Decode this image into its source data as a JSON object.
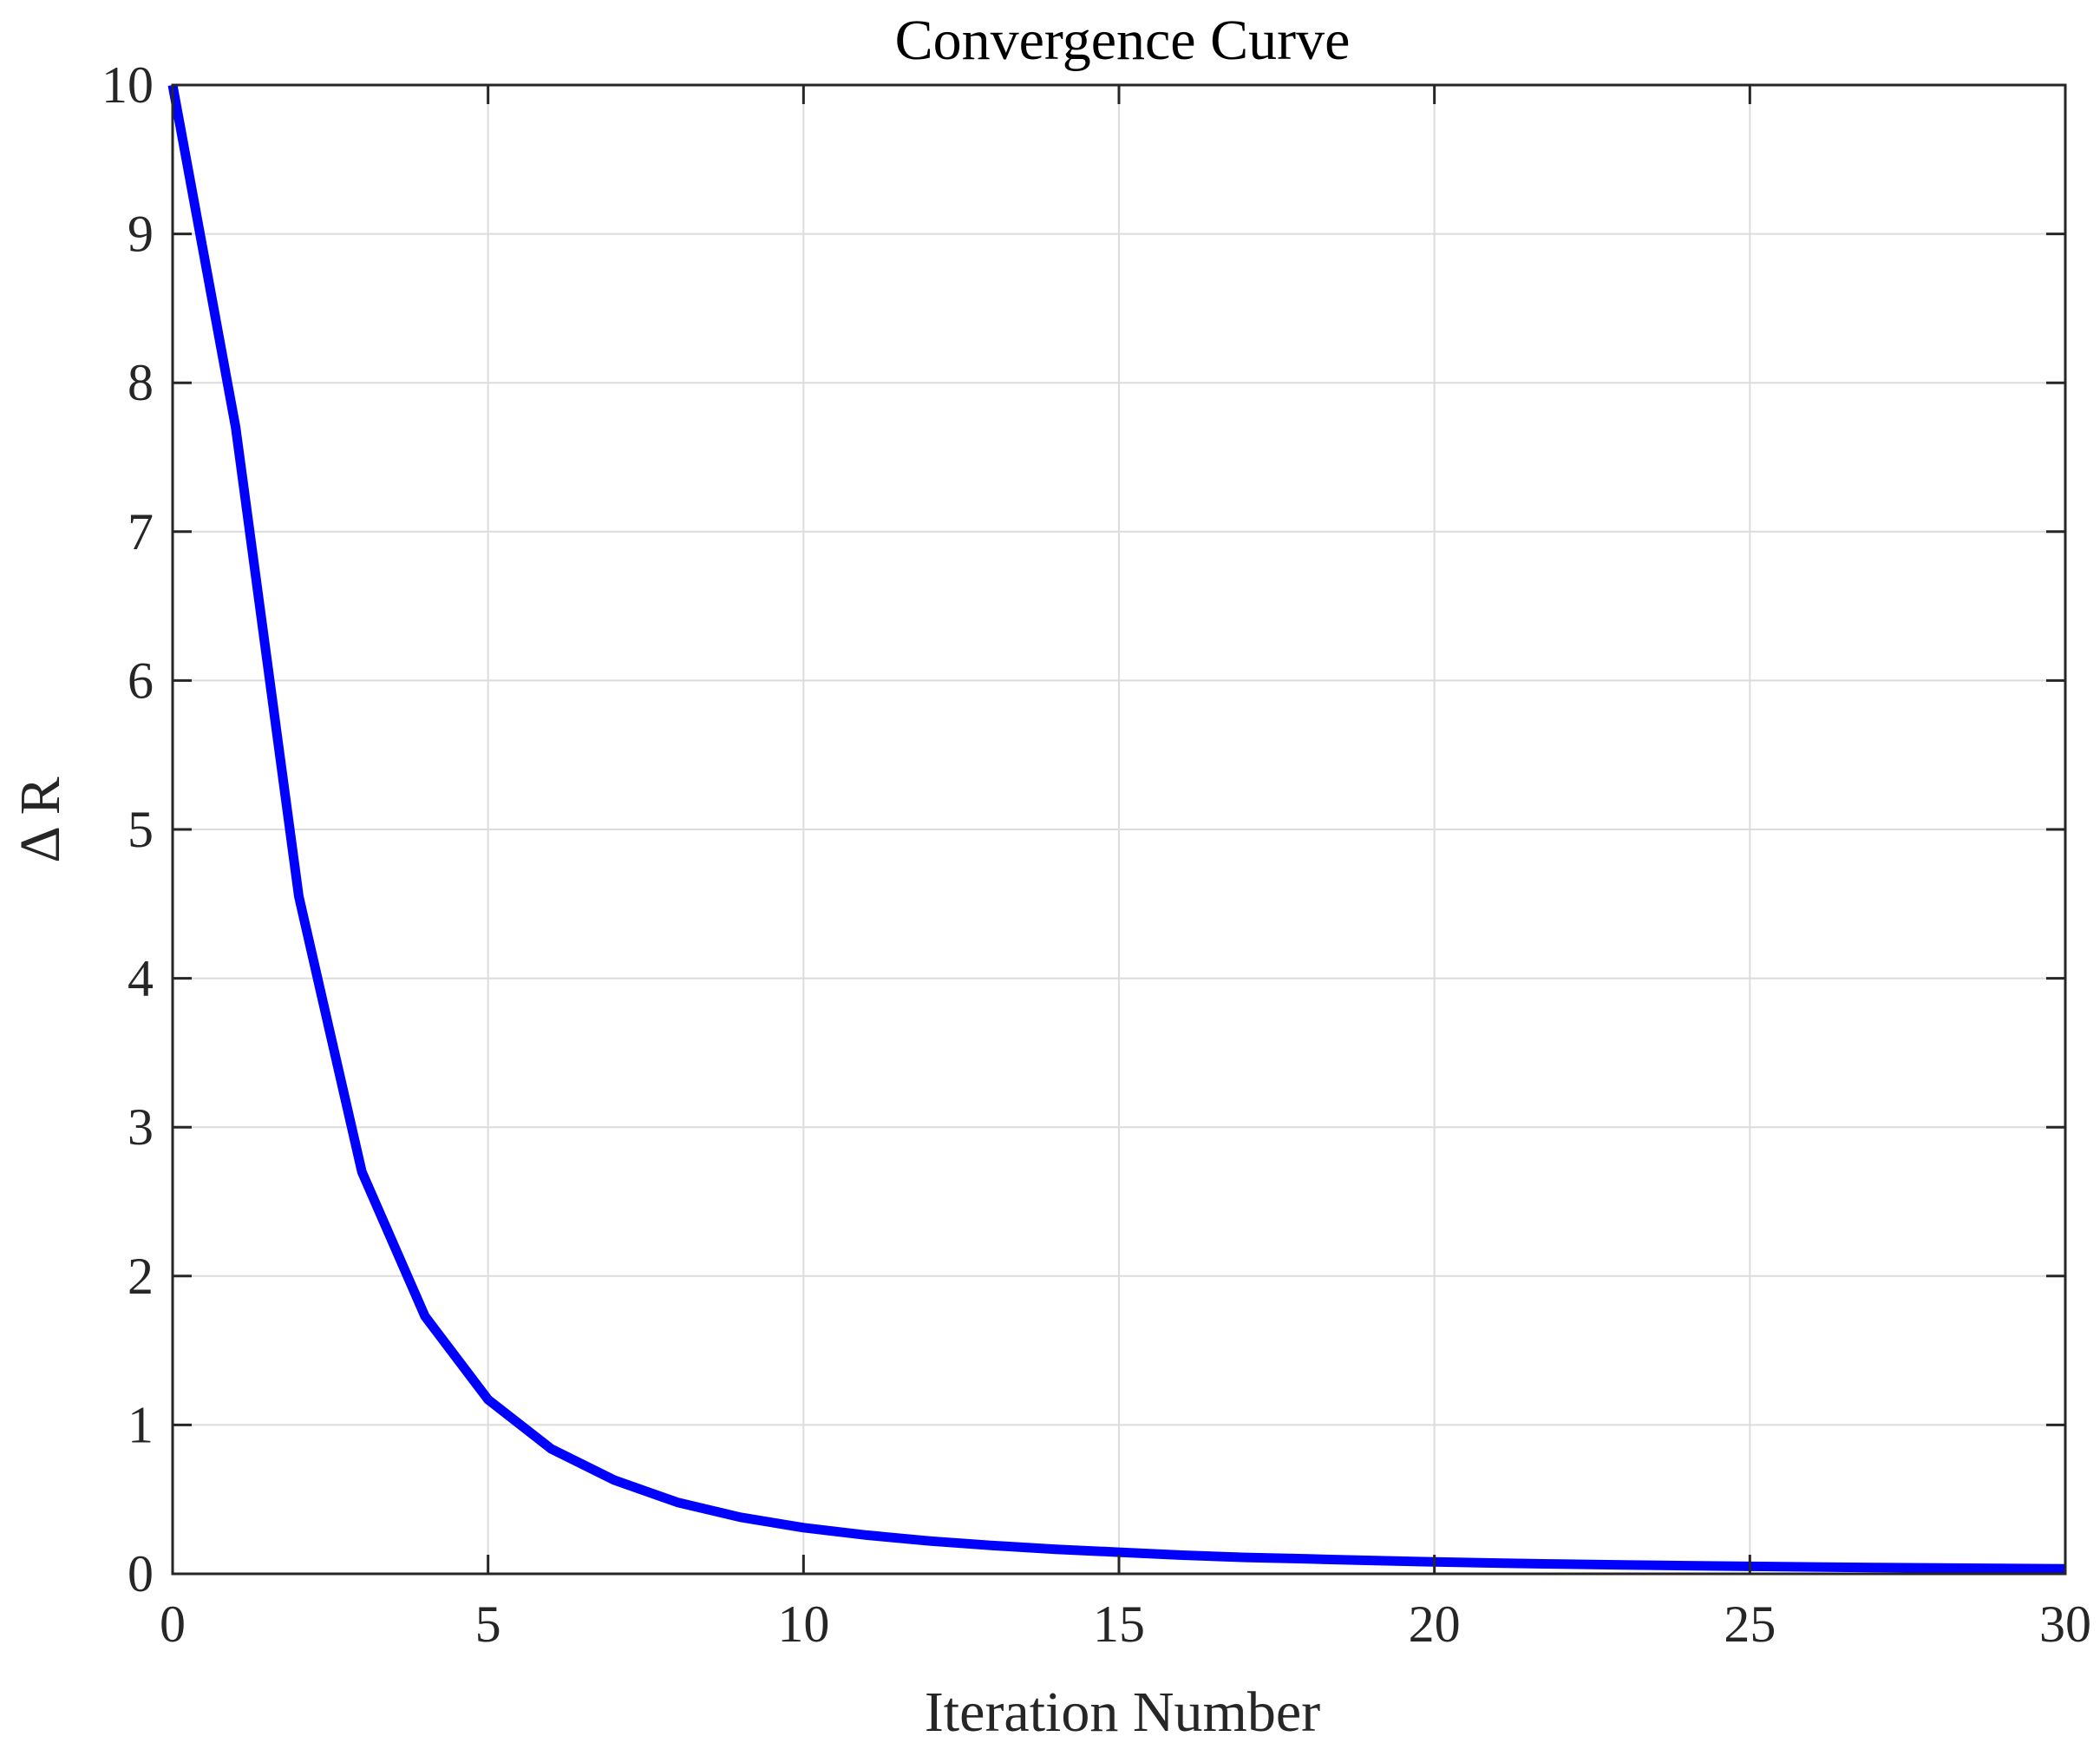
{
  "chart_data": {
    "type": "line",
    "title": "Convergence Curve",
    "xlabel": "Iteration Number",
    "ylabel": "Δ R",
    "xlim": [
      0,
      30
    ],
    "ylim": [
      0,
      10
    ],
    "xticks": [
      0,
      5,
      10,
      15,
      20,
      25,
      30
    ],
    "yticks": [
      0,
      1,
      2,
      3,
      4,
      5,
      6,
      7,
      8,
      9,
      10
    ],
    "grid": true,
    "series": [
      {
        "color": "#0000ff",
        "x": [
          0,
          1,
          2,
          3,
          4,
          5,
          6,
          7,
          8,
          9,
          10,
          11,
          12,
          13,
          14,
          15,
          16,
          17,
          18,
          19,
          20,
          21,
          22,
          23,
          24,
          25,
          26,
          27,
          28,
          29,
          30
        ],
        "y": [
          10.0,
          7.7,
          4.55,
          2.7,
          1.73,
          1.17,
          0.84,
          0.63,
          0.48,
          0.38,
          0.31,
          0.26,
          0.22,
          0.19,
          0.165,
          0.145,
          0.125,
          0.11,
          0.1,
          0.09,
          0.08,
          0.072,
          0.065,
          0.06,
          0.055,
          0.05,
          0.046,
          0.042,
          0.039,
          0.036,
          0.033
        ]
      }
    ]
  }
}
